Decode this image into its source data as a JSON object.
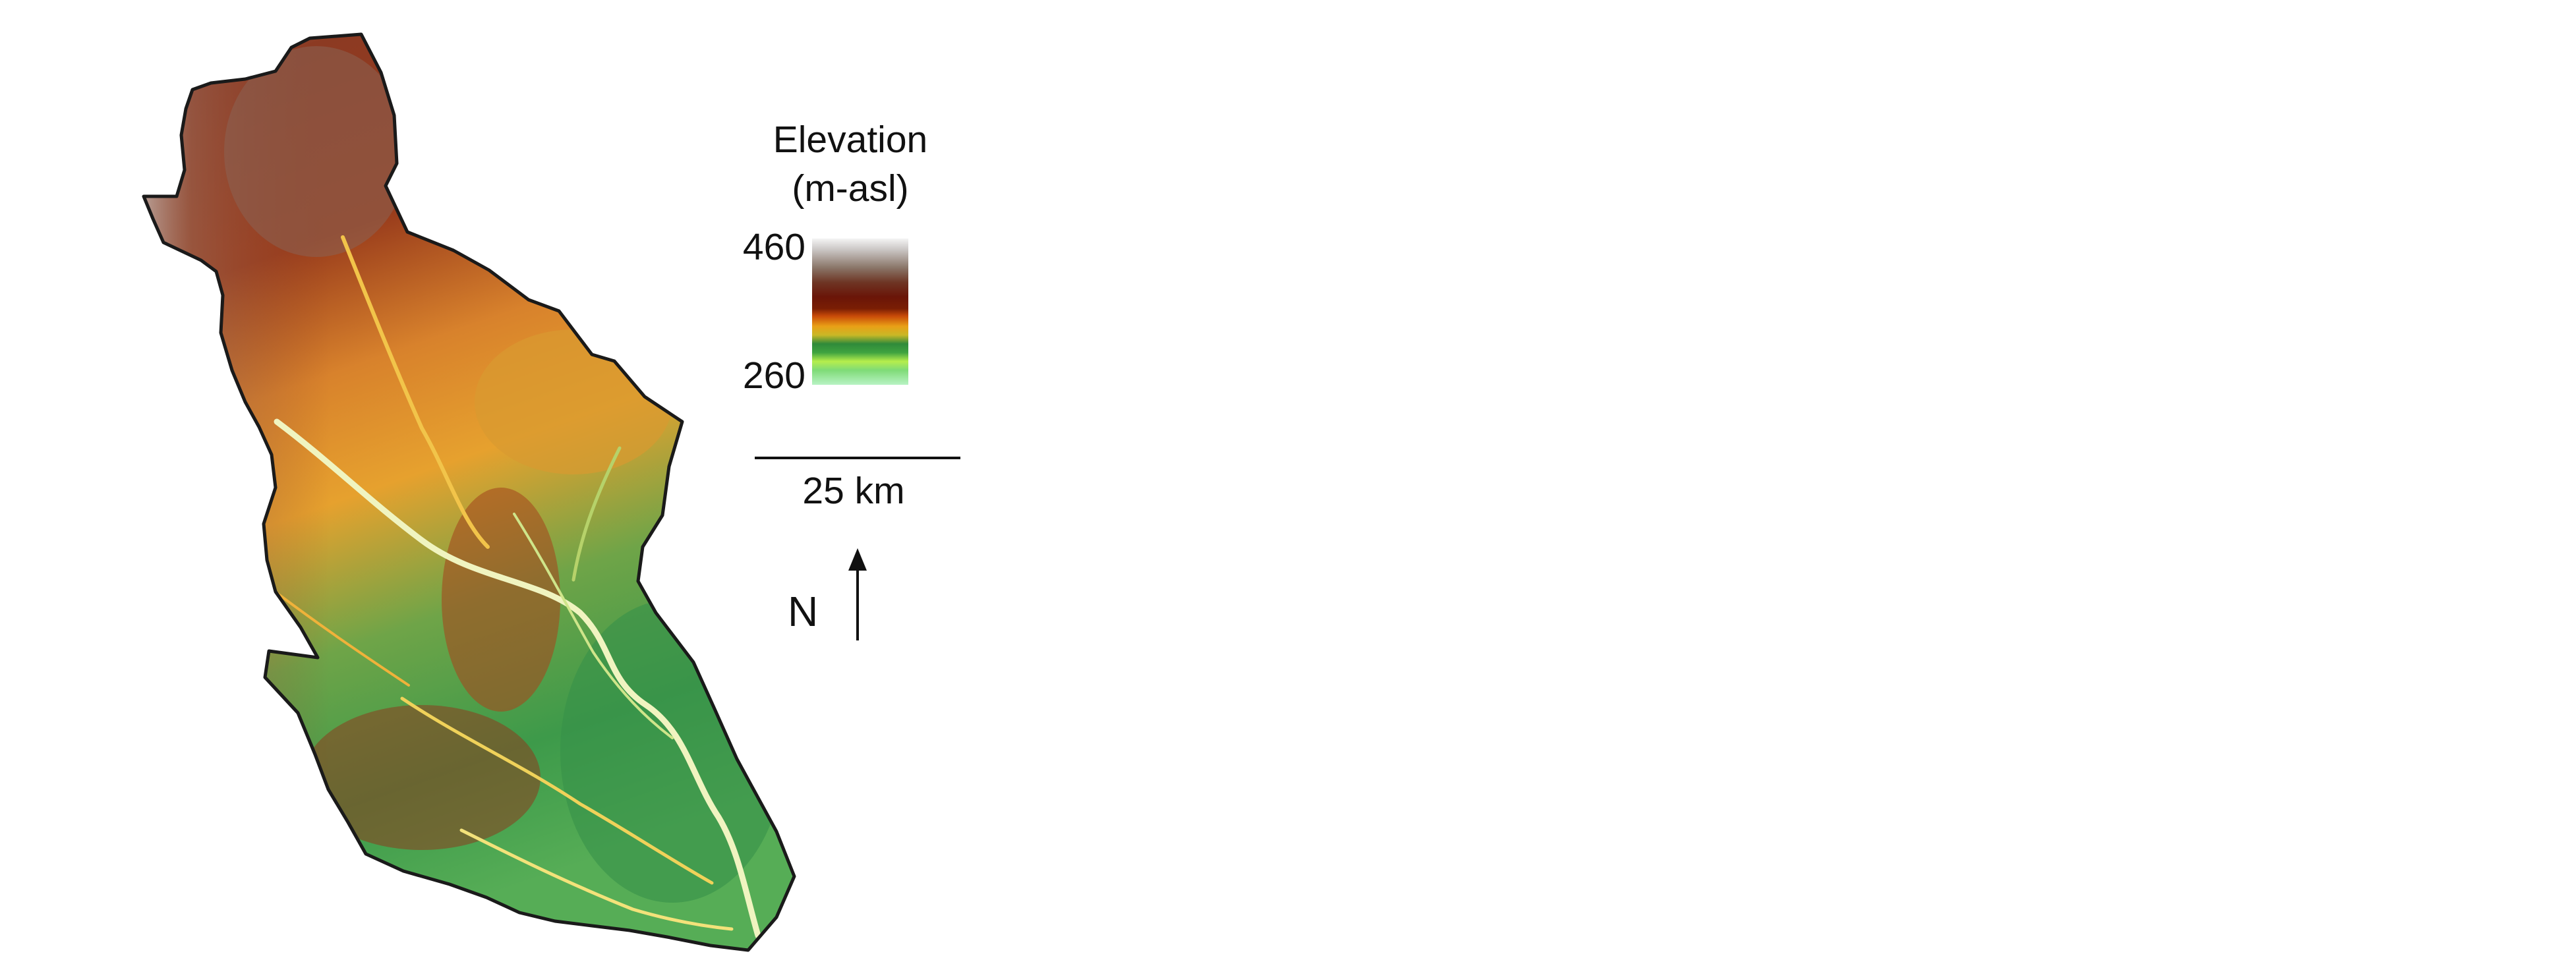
{
  "legend": {
    "title_line1": "Elevation",
    "title_line2": "(m-asl)",
    "max_label": "460",
    "min_label": "260",
    "ramp_colors": [
      "#f4f4f4",
      "#c8c4c2",
      "#8a7568",
      "#6e3524",
      "#6a1508",
      "#7a1e04",
      "#c84a08",
      "#e9a016",
      "#c9b826",
      "#2f8a3a",
      "#3fa340",
      "#b6ee4c",
      "#7fdb77",
      "#b8f3c4"
    ]
  },
  "scale_bar": {
    "label": "25 km"
  },
  "north_arrow": {
    "label": "N"
  },
  "map": {
    "boundary_color": "#1a1a1a",
    "terrain_colors": {
      "high": "#c9c3c0",
      "upper": "#8c3a22",
      "mid": "#e39a2a",
      "low": "#3e9a4a",
      "lowest": "#f3f6c8"
    }
  }
}
